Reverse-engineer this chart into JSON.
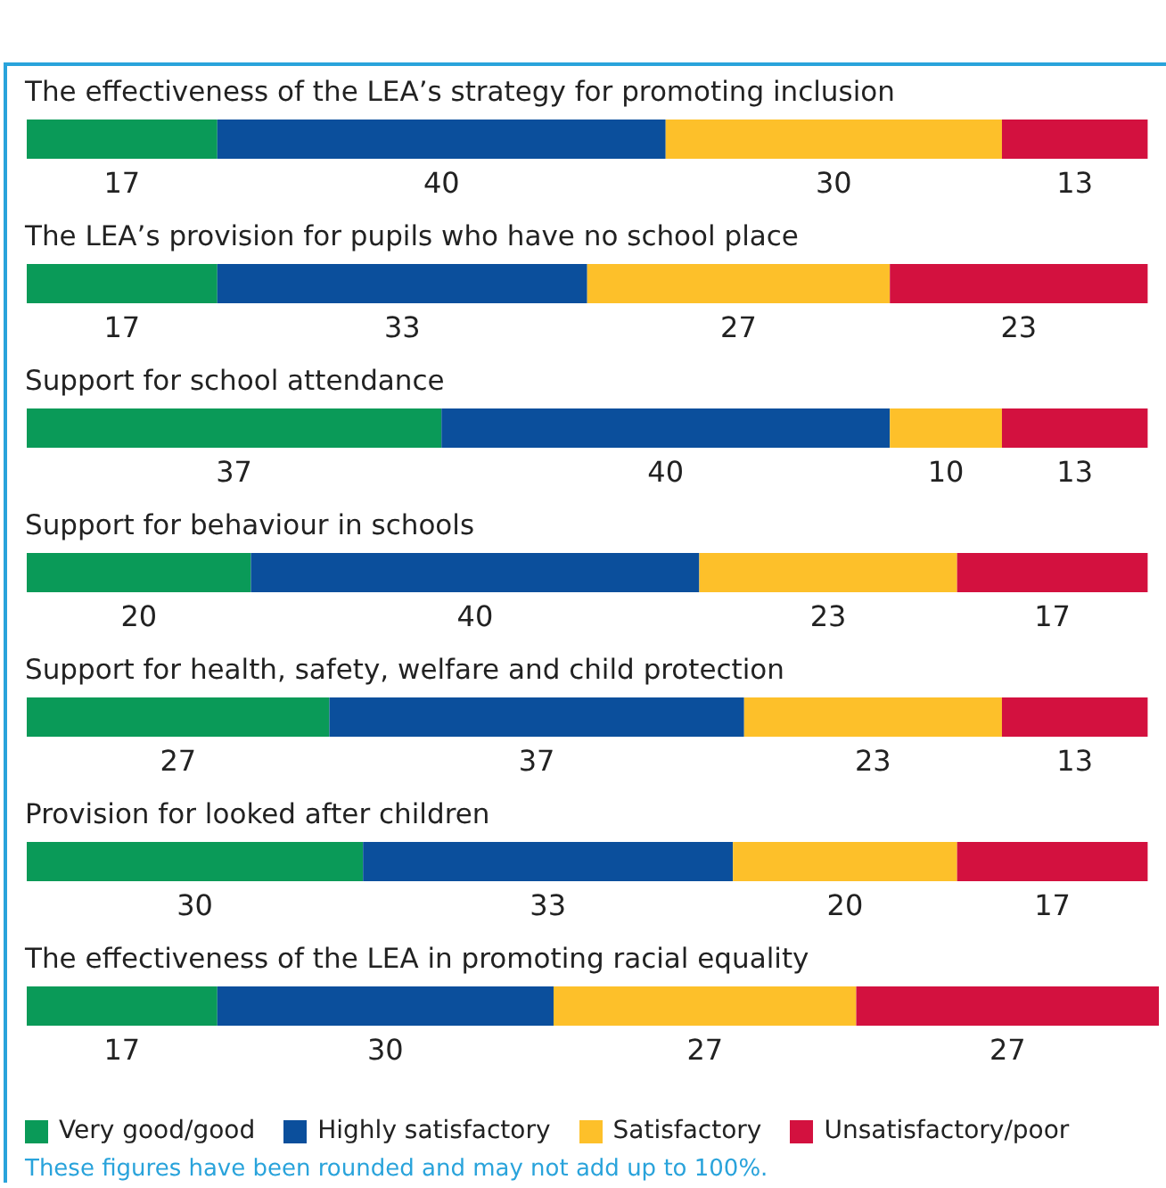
{
  "chart_data": {
    "type": "bar",
    "orientation": "horizontal",
    "stacked": true,
    "data_labels": true,
    "legend": "bottom",
    "tick_labels": "y",
    "xlim": [
      0,
      101
    ],
    "categories": [
      "The effectiveness of the LEA’s strategy for promoting inclusion",
      "The LEA’s provision for pupils who have no school place",
      "Support for school attendance",
      "Support for behaviour in schools",
      "Support for health, safety, welfare and child protection",
      "Provision for looked after children",
      "The effectiveness of the LEA in promoting racial equality"
    ],
    "series": [
      {
        "name": "Very good/good",
        "color": "#0a9a58",
        "values": [
          17,
          17,
          37,
          20,
          27,
          30,
          17
        ]
      },
      {
        "name": "Highly satisfactory",
        "color": "#0b4f9c",
        "values": [
          40,
          33,
          40,
          40,
          37,
          33,
          30
        ]
      },
      {
        "name": "Satisfactory",
        "color": "#fdc02a",
        "values": [
          30,
          27,
          10,
          23,
          23,
          20,
          27
        ]
      },
      {
        "name": "Unsatisfactory/poor",
        "color": "#d3113f",
        "values": [
          13,
          23,
          13,
          17,
          13,
          17,
          27
        ]
      }
    ],
    "annotations": [
      "These figures have been rounded and may not add up to 100%."
    ]
  }
}
